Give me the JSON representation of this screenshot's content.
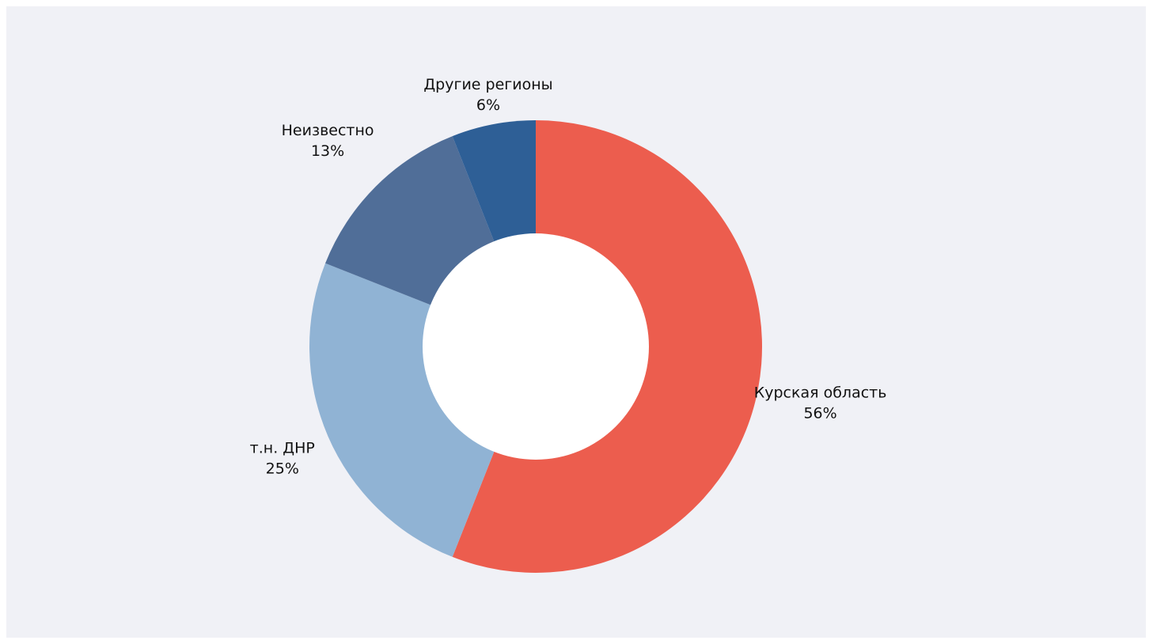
{
  "chart_data": {
    "type": "pie",
    "donut": true,
    "title": "",
    "categories": [
      "Курская область",
      "т.н. ДНР",
      "Неизвестно",
      "Другие регионы"
    ],
    "values": [
      56,
      25,
      13,
      6
    ],
    "value_labels": [
      "56%",
      "25%",
      "13%",
      "6%"
    ],
    "colors": [
      "#ec5d4e",
      "#90b3d4",
      "#506e98",
      "#2e5f96"
    ],
    "start": "12 o'clock",
    "direction": "clockwise",
    "legend": "none"
  }
}
